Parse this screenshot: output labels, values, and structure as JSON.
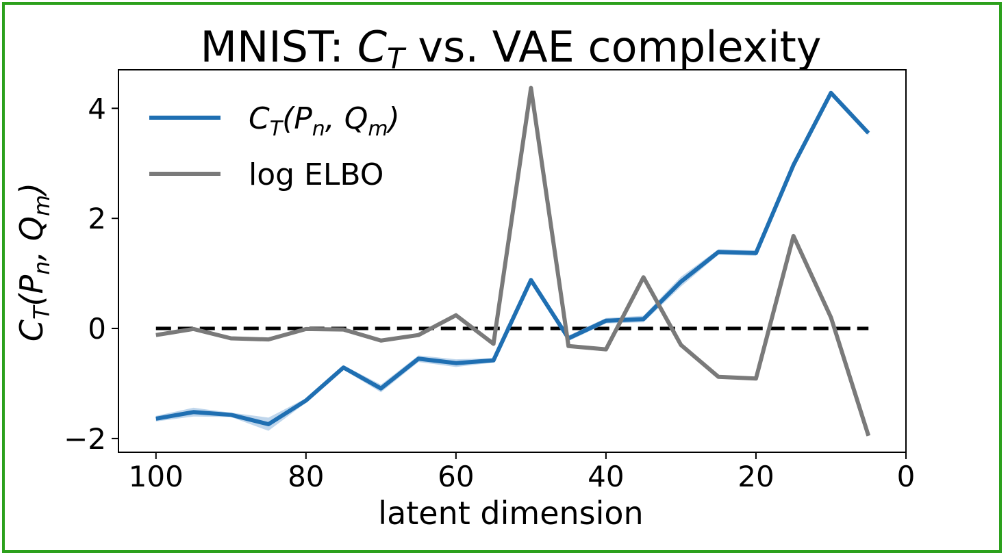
{
  "chart_data": {
    "type": "line",
    "title_prefix": "MNIST: ",
    "title_var_main": "C",
    "title_var_sub": "T",
    "title_suffix": " vs. VAE complexity",
    "xlabel": "latent dimension",
    "ylabel_main": "C",
    "ylabel_sub": "T",
    "ylabel_rest_1": "(P",
    "ylabel_sub_n": "n",
    "ylabel_rest_2": ", Q",
    "ylabel_sub_m": "m",
    "ylabel_close": ")",
    "xlim": [
      105,
      0
    ],
    "ylim": [
      -2.25,
      4.7
    ],
    "x_ticks": [
      100,
      80,
      60,
      40,
      20,
      0
    ],
    "x_tick_labels": [
      "100",
      "80",
      "60",
      "40",
      "20",
      "0"
    ],
    "y_ticks": [
      -2,
      0,
      2,
      4
    ],
    "y_tick_labels": [
      "−2",
      "0",
      "2",
      "4"
    ],
    "reference_line": {
      "y": 0,
      "style": "dashed",
      "color": "#000000"
    },
    "x": [
      100,
      95,
      90,
      85,
      80,
      75,
      70,
      65,
      60,
      55,
      50,
      45,
      40,
      35,
      30,
      25,
      20,
      15,
      10,
      5
    ],
    "series": [
      {
        "name": "C_T(P_n, Q_m)",
        "color": "#1f6fb2",
        "band_color": "#aac8e6",
        "values": [
          -1.64,
          -1.52,
          -1.57,
          -1.74,
          -1.31,
          -0.71,
          -1.09,
          -0.55,
          -0.63,
          -0.58,
          0.88,
          -0.18,
          0.14,
          0.17,
          0.85,
          1.39,
          1.37,
          2.97,
          4.28,
          3.55
        ],
        "band": [
          0.05,
          0.08,
          0.04,
          0.12,
          0.04,
          0.04,
          0.07,
          0.06,
          0.07,
          0.04,
          0.04,
          0.05,
          0.05,
          0.06,
          0.09,
          0.05,
          0.05,
          0.05,
          0.04,
          0.04
        ]
      },
      {
        "name": "log ELBO",
        "color": "#7a7a7a",
        "values": [
          -0.12,
          -0.01,
          -0.18,
          -0.2,
          -0.01,
          -0.02,
          -0.22,
          -0.12,
          0.24,
          -0.28,
          4.37,
          -0.32,
          -0.38,
          0.93,
          -0.3,
          -0.88,
          -0.91,
          1.68,
          0.2,
          -1.95
        ]
      }
    ],
    "legend": {
      "position": "upper-left",
      "entries": [
        {
          "main": "C",
          "sub": "T",
          "rest1": "(P",
          "sub_n": "n",
          "rest2": ", Q",
          "sub_m": "m",
          "close": ")"
        },
        {
          "text": "log ELBO"
        }
      ]
    }
  }
}
